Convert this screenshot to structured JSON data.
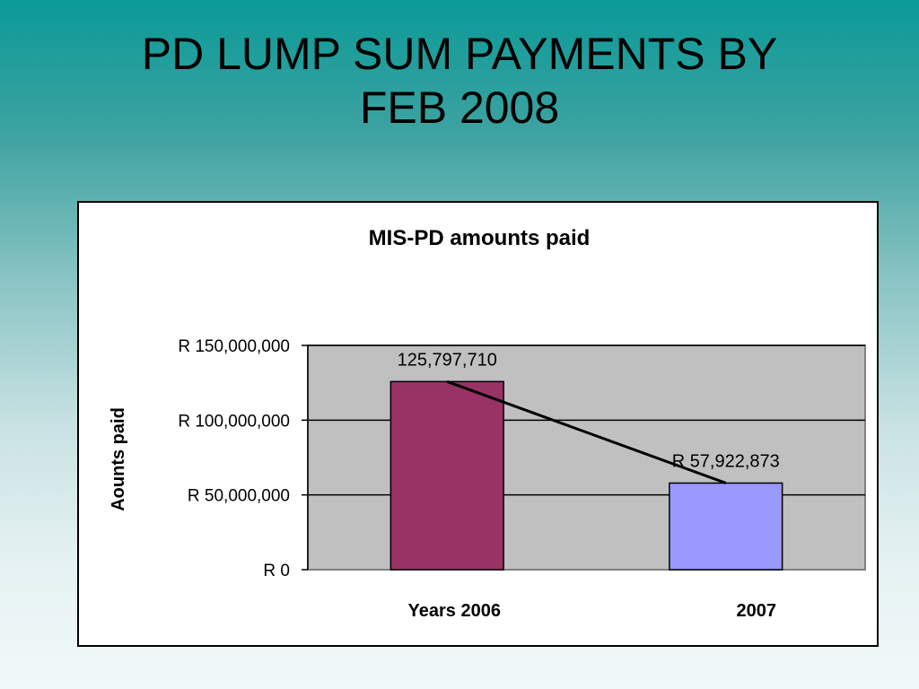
{
  "slide": {
    "title_line1": "PD LUMP SUM PAYMENTS BY",
    "title_line2": "FEB 2008"
  },
  "colors": {
    "plot_bg": "#c0c0c0",
    "trendline": "#000000"
  },
  "chart_data": {
    "type": "bar",
    "title": "MIS-PD amounts paid",
    "ylabel": "Aounts paid",
    "xlabel": "",
    "categories": [
      "Years  2006",
      "2007"
    ],
    "values": [
      125797710,
      57922873
    ],
    "data_labels": [
      "125,797,710",
      "R 57,922,873"
    ],
    "bar_colors": [
      "#993366",
      "#9999ff"
    ],
    "ylim": [
      0,
      150000000
    ],
    "yticks": [
      0,
      50000000,
      100000000,
      150000000
    ],
    "ytick_labels": [
      "R 0",
      "R 50,000,000",
      "R 100,000,000",
      "R 150,000,000"
    ],
    "grid": true,
    "legend": "none",
    "trendline": "linear"
  }
}
